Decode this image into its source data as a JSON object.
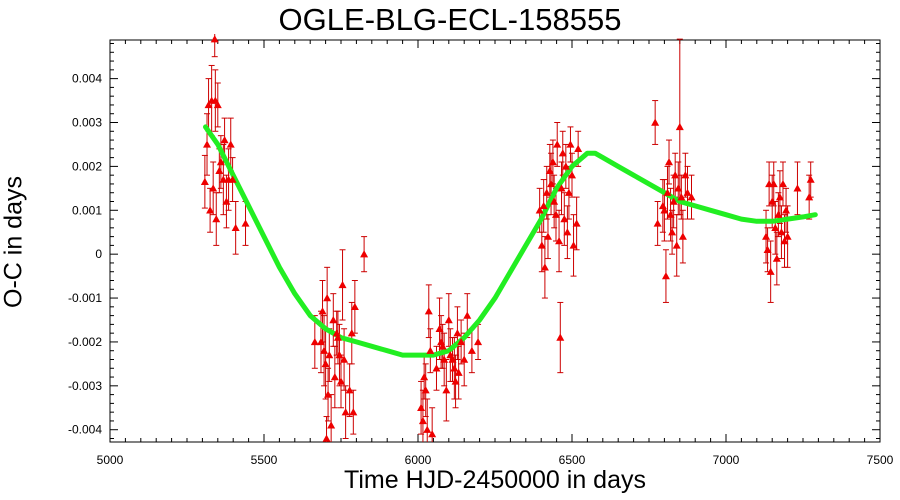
{
  "chart_data": {
    "type": "scatter",
    "title": "OGLE-BLG-ECL-158555",
    "xlabel": "Time HJD-2450000 in days",
    "ylabel": "O-C in days",
    "xlim": [
      5000,
      7500
    ],
    "ylim": [
      -0.00428,
      0.00488
    ],
    "x_ticks": [
      5000,
      5500,
      6000,
      6500,
      7000,
      7500
    ],
    "x_tick_labels": [
      "5000",
      "5500",
      "6000",
      "6500",
      "7000",
      "7500"
    ],
    "y_ticks": [
      -0.004,
      -0.003,
      -0.002,
      -0.001,
      0,
      0.001,
      0.002,
      0.003,
      0.004
    ],
    "y_tick_labels": [
      "-0.004",
      "-0.003",
      "-0.002",
      "-0.001",
      "0",
      "0.001",
      "0.002",
      "0.003",
      "0.004"
    ],
    "grid": false,
    "legend": "none",
    "colors": {
      "points": "#ee0000",
      "errorbars": "#cc0000",
      "fit": "#22ee22"
    },
    "series": [
      {
        "kind": "measurements",
        "points": [
          {
            "x": 5308,
            "y": 0.00165,
            "err": 0.0006
          },
          {
            "x": 5315,
            "y": 0.0025,
            "err": 0.0007
          },
          {
            "x": 5320,
            "y": 0.0034,
            "err": 0.0006
          },
          {
            "x": 5325,
            "y": 0.001,
            "err": 0.0005
          },
          {
            "x": 5330,
            "y": 0.0035,
            "err": 0.0008
          },
          {
            "x": 5335,
            "y": 0.0015,
            "err": 0.0006
          },
          {
            "x": 5340,
            "y": 0.0049,
            "err": 0.0004
          },
          {
            "x": 5342,
            "y": 0.0035,
            "err": 0.0007
          },
          {
            "x": 5345,
            "y": 0.0008,
            "err": 0.0006
          },
          {
            "x": 5350,
            "y": 0.0034,
            "err": 0.0005
          },
          {
            "x": 5355,
            "y": 0.0019,
            "err": 0.0005
          },
          {
            "x": 5360,
            "y": 0.0021,
            "err": 0.0006
          },
          {
            "x": 5368,
            "y": 0.0017,
            "err": 0.0008
          },
          {
            "x": 5372,
            "y": 0.0026,
            "err": 0.0005
          },
          {
            "x": 5378,
            "y": 0.0012,
            "err": 0.0006
          },
          {
            "x": 5385,
            "y": 0.0017,
            "err": 0.0007
          },
          {
            "x": 5392,
            "y": 0.0025,
            "err": 0.0006
          },
          {
            "x": 5398,
            "y": 0.0017,
            "err": 0.0005
          },
          {
            "x": 5408,
            "y": 0.0006,
            "err": 0.0006
          },
          {
            "x": 5440,
            "y": 0.0007,
            "err": 0.0005
          },
          {
            "x": 5665,
            "y": -0.002,
            "err": 0.0006
          },
          {
            "x": 5685,
            "y": -0.002,
            "err": 0.0007
          },
          {
            "x": 5690,
            "y": -0.0013,
            "err": 0.0007
          },
          {
            "x": 5695,
            "y": -0.0022,
            "err": 0.0008
          },
          {
            "x": 5700,
            "y": -0.0025,
            "err": 0.0008
          },
          {
            "x": 5703,
            "y": -0.0042,
            "err": 0.0005
          },
          {
            "x": 5705,
            "y": -0.001,
            "err": 0.0007
          },
          {
            "x": 5708,
            "y": -0.0032,
            "err": 0.0006
          },
          {
            "x": 5712,
            "y": -0.0023,
            "err": 0.0006
          },
          {
            "x": 5718,
            "y": -0.0039,
            "err": 0.0007
          },
          {
            "x": 5725,
            "y": -0.0015,
            "err": 0.0006
          },
          {
            "x": 5730,
            "y": -0.0028,
            "err": 0.0007
          },
          {
            "x": 5736,
            "y": -0.0018,
            "err": 0.0005
          },
          {
            "x": 5740,
            "y": -0.0019,
            "err": 0.0006
          },
          {
            "x": 5745,
            "y": -0.0023,
            "err": 0.0007
          },
          {
            "x": 5750,
            "y": -0.0029,
            "err": 0.0006
          },
          {
            "x": 5755,
            "y": -0.0007,
            "err": 0.0008
          },
          {
            "x": 5760,
            "y": -0.0024,
            "err": 0.0007
          },
          {
            "x": 5765,
            "y": -0.0036,
            "err": 0.0006
          },
          {
            "x": 5778,
            "y": -0.0031,
            "err": 0.0006
          },
          {
            "x": 5785,
            "y": -0.0018,
            "err": 0.0007
          },
          {
            "x": 5790,
            "y": -0.0036,
            "err": 0.0005
          },
          {
            "x": 5795,
            "y": -0.0012,
            "err": 0.0006
          },
          {
            "x": 5825,
            "y": 0.0,
            "err": 0.0004
          },
          {
            "x": 6010,
            "y": -0.0035,
            "err": 0.0006
          },
          {
            "x": 6016,
            "y": -0.0038,
            "err": 0.0007
          },
          {
            "x": 6020,
            "y": -0.0028,
            "err": 0.0005
          },
          {
            "x": 6025,
            "y": -0.0031,
            "err": 0.0006
          },
          {
            "x": 6030,
            "y": -0.004,
            "err": 0.0007
          },
          {
            "x": 6035,
            "y": -0.0013,
            "err": 0.0006
          },
          {
            "x": 6040,
            "y": -0.0022,
            "err": 0.0005
          },
          {
            "x": 6046,
            "y": -0.0041,
            "err": 0.0006
          },
          {
            "x": 6060,
            "y": -0.0026,
            "err": 0.0005
          },
          {
            "x": 6070,
            "y": -0.0017,
            "err": 0.0007
          },
          {
            "x": 6075,
            "y": -0.002,
            "err": 0.0006
          },
          {
            "x": 6080,
            "y": -0.0021,
            "err": 0.0005
          },
          {
            "x": 6085,
            "y": -0.0024,
            "err": 0.0006
          },
          {
            "x": 6092,
            "y": -0.0031,
            "err": 0.0007
          },
          {
            "x": 6100,
            "y": -0.0015,
            "err": 0.0006
          },
          {
            "x": 6105,
            "y": -0.0023,
            "err": 0.0006
          },
          {
            "x": 6112,
            "y": -0.0024,
            "err": 0.0005
          },
          {
            "x": 6118,
            "y": -0.0026,
            "err": 0.0007
          },
          {
            "x": 6122,
            "y": -0.0029,
            "err": 0.0006
          },
          {
            "x": 6128,
            "y": -0.0018,
            "err": 0.0006
          },
          {
            "x": 6132,
            "y": -0.0027,
            "err": 0.0006
          },
          {
            "x": 6140,
            "y": -0.002,
            "err": 0.0005
          },
          {
            "x": 6150,
            "y": -0.0024,
            "err": 0.0006
          },
          {
            "x": 6160,
            "y": -0.0014,
            "err": 0.0005
          },
          {
            "x": 6175,
            "y": -0.0022,
            "err": 0.0005
          },
          {
            "x": 6195,
            "y": -0.002,
            "err": 0.0004
          },
          {
            "x": 6395,
            "y": 0.001,
            "err": 0.0005
          },
          {
            "x": 6402,
            "y": 0.0002,
            "err": 0.0006
          },
          {
            "x": 6408,
            "y": 0.0011,
            "err": 0.0006
          },
          {
            "x": 6412,
            "y": -0.0003,
            "err": 0.0007
          },
          {
            "x": 6418,
            "y": 0.0014,
            "err": 0.0006
          },
          {
            "x": 6422,
            "y": 0.0004,
            "err": 0.0005
          },
          {
            "x": 6428,
            "y": 0.0019,
            "err": 0.0006
          },
          {
            "x": 6432,
            "y": 0.0016,
            "err": 0.0007
          },
          {
            "x": 6438,
            "y": 0.0021,
            "err": 0.0005
          },
          {
            "x": 6442,
            "y": 0.0012,
            "err": 0.0006
          },
          {
            "x": 6448,
            "y": 0.0009,
            "err": 0.0006
          },
          {
            "x": 6452,
            "y": 0.0025,
            "err": 0.0005
          },
          {
            "x": 6458,
            "y": 0.0003,
            "err": 0.0007
          },
          {
            "x": 6462,
            "y": -0.0019,
            "err": 0.0008
          },
          {
            "x": 6466,
            "y": 0.0015,
            "err": 0.0006
          },
          {
            "x": 6470,
            "y": 0.0023,
            "err": 0.0005
          },
          {
            "x": 6475,
            "y": 0.0008,
            "err": 0.0006
          },
          {
            "x": 6480,
            "y": 0.002,
            "err": 0.0005
          },
          {
            "x": 6485,
            "y": 0.0005,
            "err": 0.0006
          },
          {
            "x": 6490,
            "y": 0.0014,
            "err": 0.0006
          },
          {
            "x": 6495,
            "y": 0.0025,
            "err": 0.0004
          },
          {
            "x": 6500,
            "y": 0.0018,
            "err": 0.0005
          },
          {
            "x": 6505,
            "y": 0.0002,
            "err": 0.0007
          },
          {
            "x": 6515,
            "y": 0.0007,
            "err": 0.0006
          },
          {
            "x": 6520,
            "y": 0.0024,
            "err": 0.0004
          },
          {
            "x": 6770,
            "y": 0.003,
            "err": 0.0005
          },
          {
            "x": 6778,
            "y": 0.0007,
            "err": 0.0005
          },
          {
            "x": 6795,
            "y": 0.0011,
            "err": 0.0006
          },
          {
            "x": 6800,
            "y": 0.001,
            "err": 0.0007
          },
          {
            "x": 6805,
            "y": -0.0005,
            "err": 0.0006
          },
          {
            "x": 6810,
            "y": 0.0014,
            "err": 0.0006
          },
          {
            "x": 6815,
            "y": 0.0021,
            "err": 0.0005
          },
          {
            "x": 6820,
            "y": 0.0009,
            "err": 0.0006
          },
          {
            "x": 6825,
            "y": 0.0005,
            "err": 0.0005
          },
          {
            "x": 6830,
            "y": 0.0012,
            "err": 0.0006
          },
          {
            "x": 6835,
            "y": 0.0018,
            "err": 0.0005
          },
          {
            "x": 6840,
            "y": 0.0002,
            "err": 0.0007
          },
          {
            "x": 6845,
            "y": 0.0015,
            "err": 0.0006
          },
          {
            "x": 6850,
            "y": 0.0029,
            "err": 0.002
          },
          {
            "x": 6855,
            "y": 0.0013,
            "err": 0.0005
          },
          {
            "x": 6860,
            "y": 0.0004,
            "err": 0.0006
          },
          {
            "x": 6868,
            "y": 0.0018,
            "err": 0.0005
          },
          {
            "x": 6875,
            "y": 0.0014,
            "err": 0.0006
          },
          {
            "x": 6888,
            "y": 0.0013,
            "err": 0.0005
          },
          {
            "x": 7130,
            "y": 0.0004,
            "err": 0.0006
          },
          {
            "x": 7135,
            "y": 0.0001,
            "err": 0.0005
          },
          {
            "x": 7140,
            "y": 0.0016,
            "err": 0.0005
          },
          {
            "x": 7145,
            "y": -0.0004,
            "err": 0.0007
          },
          {
            "x": 7150,
            "y": 0.0012,
            "err": 0.0006
          },
          {
            "x": 7155,
            "y": 0.0016,
            "err": 0.0005
          },
          {
            "x": 7160,
            "y": 0.0006,
            "err": 0.0006
          },
          {
            "x": 7165,
            "y": -0.0001,
            "err": 0.0006
          },
          {
            "x": 7170,
            "y": 0.0009,
            "err": 0.0005
          },
          {
            "x": 7175,
            "y": 0.0013,
            "err": 0.0006
          },
          {
            "x": 7180,
            "y": 0.0005,
            "err": 0.0006
          },
          {
            "x": 7185,
            "y": 0.0016,
            "err": 0.0005
          },
          {
            "x": 7190,
            "y": 0.0003,
            "err": 0.0006
          },
          {
            "x": 7195,
            "y": 0.001,
            "err": 0.0005
          },
          {
            "x": 7200,
            "y": 0.0004,
            "err": 0.0007
          },
          {
            "x": 7232,
            "y": 0.0015,
            "err": 0.0006
          },
          {
            "x": 7270,
            "y": 0.0013,
            "err": 0.0005
          },
          {
            "x": 7275,
            "y": 0.0017,
            "err": 0.0004
          }
        ]
      },
      {
        "kind": "fit",
        "x": [
          5310,
          5350,
          5400,
          5450,
          5500,
          5550,
          5600,
          5650,
          5700,
          5750,
          5800,
          5850,
          5900,
          5950,
          6000,
          6050,
          6100,
          6150,
          6200,
          6250,
          6300,
          6350,
          6400,
          6450,
          6500,
          6550,
          6575,
          6600,
          6650,
          6700,
          6750,
          6800,
          6850,
          6900,
          6950,
          7000,
          7050,
          7100,
          7150,
          7200,
          7250,
          7290
        ],
        "y": [
          0.0029,
          0.0025,
          0.0018,
          0.0011,
          0.0004,
          -0.0003,
          -0.0009,
          -0.0014,
          -0.0017,
          -0.0019,
          -0.002,
          -0.0021,
          -0.0022,
          -0.0023,
          -0.0023,
          -0.0023,
          -0.0022,
          -0.0019,
          -0.0015,
          -0.001,
          -0.0004,
          0.0002,
          0.0008,
          0.0015,
          0.002,
          0.0023,
          0.0023,
          0.0022,
          0.002,
          0.0018,
          0.0016,
          0.0014,
          0.0012,
          0.0011,
          0.001,
          0.0009,
          0.0008,
          0.00075,
          0.00075,
          0.0008,
          0.00085,
          0.0009
        ]
      }
    ]
  }
}
